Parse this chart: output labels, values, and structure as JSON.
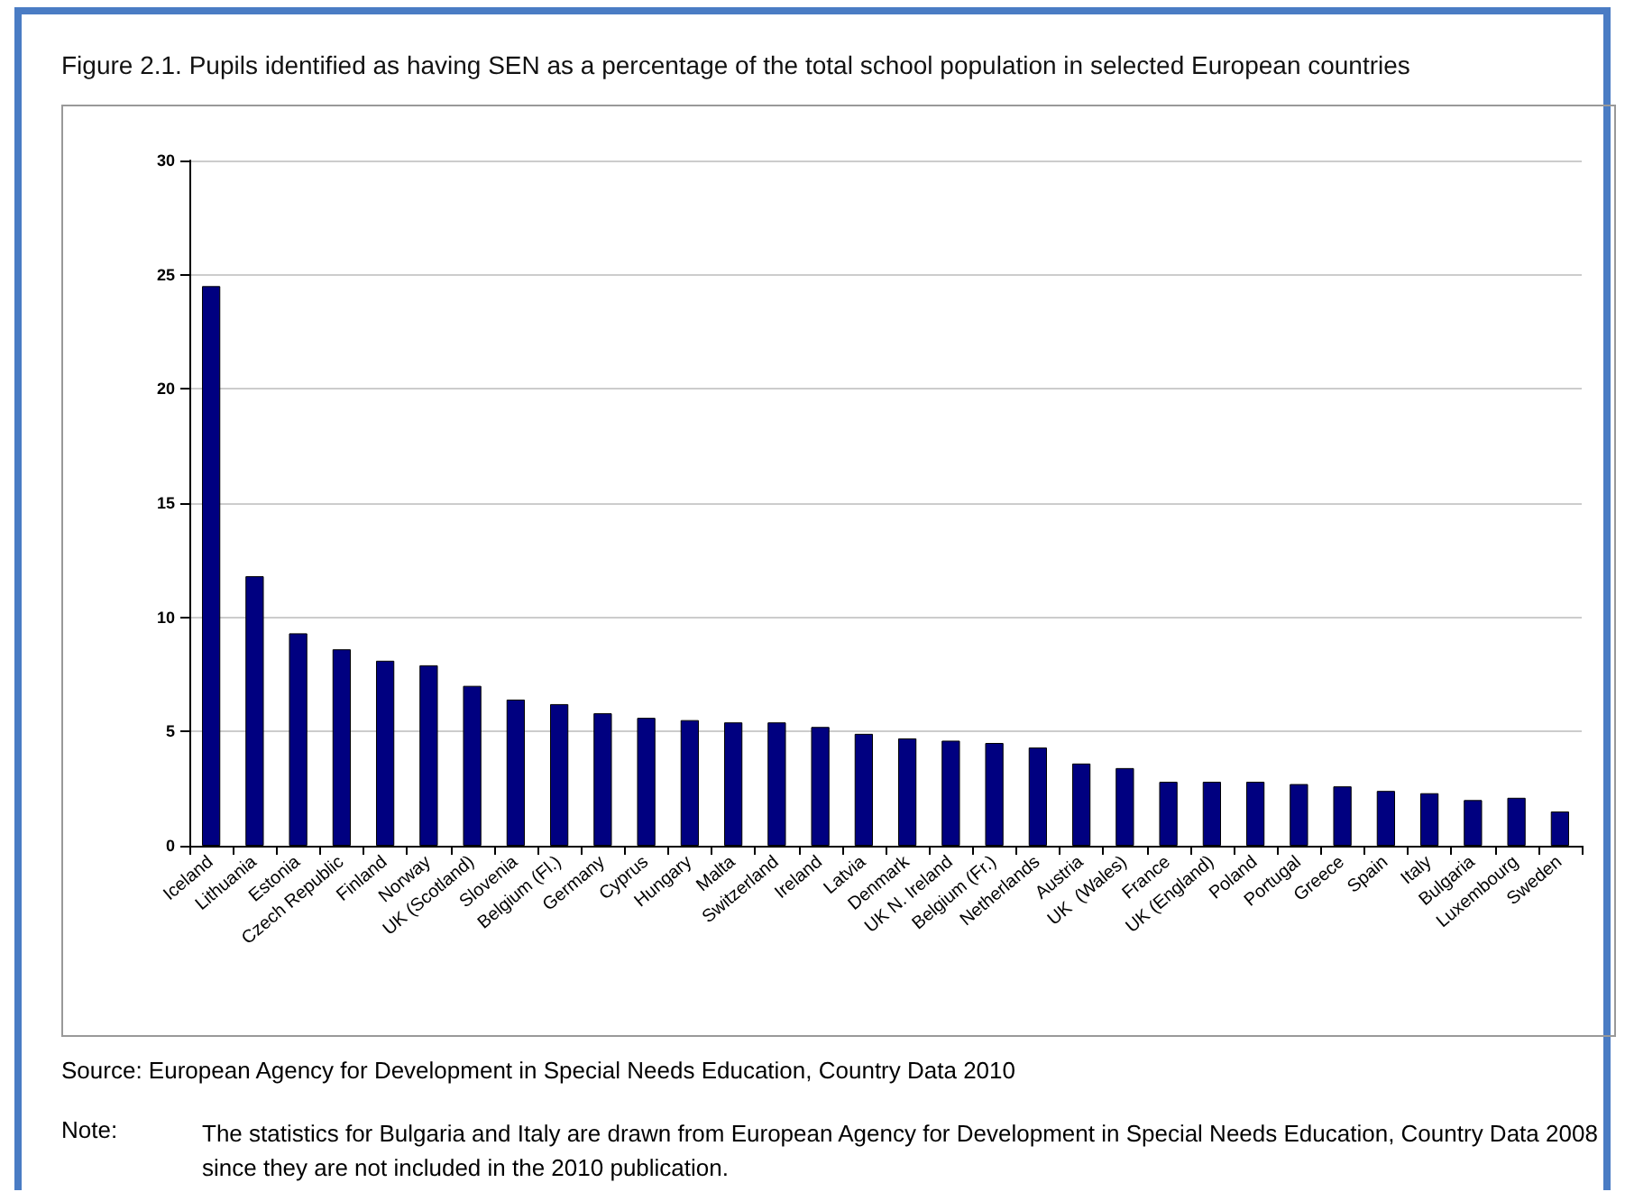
{
  "chart_data": {
    "type": "bar",
    "title": "Figure 2.1.  Pupils identified as having SEN as a percentage of the total school population in selected European countries",
    "categories": [
      "Iceland",
      "Lithuania",
      "Estonia",
      "Czech Republic",
      "Finland",
      "Norway",
      "UK (Scotland)",
      "Slovenia",
      "Belgium (Fl.)",
      "Germany",
      "Cyprus",
      "Hungary",
      "Malta",
      "Switzerland",
      "Ireland",
      "Latvia",
      "Denmark",
      "UK N. Ireland",
      "Belgium (Fr.)",
      "Netherlands",
      "Austria",
      "UK  (Wales)",
      "France",
      "UK (England)",
      "Poland",
      "Portugal",
      "Greece",
      "Spain",
      "Italy",
      "Bulgaria",
      "Luxembourg",
      "Sweden"
    ],
    "values": [
      24.5,
      11.8,
      9.3,
      8.6,
      8.1,
      7.9,
      7.0,
      6.4,
      6.2,
      5.8,
      5.6,
      5.5,
      5.4,
      5.4,
      5.2,
      4.9,
      4.7,
      4.6,
      4.5,
      4.3,
      3.6,
      3.4,
      2.8,
      2.8,
      2.8,
      2.7,
      2.6,
      2.4,
      2.3,
      2.0,
      2.1,
      1.5
    ],
    "color": "#000080",
    "ylim": [
      0,
      30
    ],
    "yticks": [
      0,
      5,
      10,
      15,
      20,
      25,
      30
    ],
    "grid": "y",
    "annotations": [
      "Source:  European Agency for Development in Special Needs Education, Country Data 2010",
      "Note:",
      "The statistics for Bulgaria and Italy are drawn from European Agency for Development in Special Needs Education, Country Data 2008 since they are not included in the 2010 publication."
    ]
  }
}
